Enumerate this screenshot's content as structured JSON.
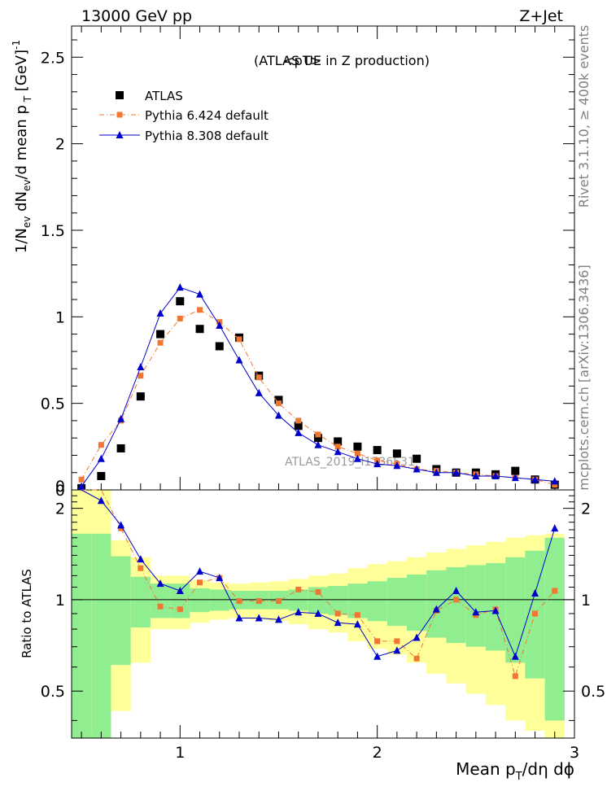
{
  "header": {
    "left": "13000 GeV pp",
    "right": "Z+Jet"
  },
  "side_labels": {
    "right_top": "Rivet 3.1.10, ≥ 400k events",
    "right_bottom": "mcplots.cern.ch [arXiv:1306.3436]"
  },
  "watermark": "ATLAS_2019_I1736531",
  "chart_data": [
    {
      "type": "scatter",
      "panel": "main",
      "title": "<pT>",
      "subtitle": "(ATLAS UE in Z production)",
      "ylabel": "1/N_ev dN_ev/d mean p_T [GeV]^-1",
      "xlim": [
        0.45,
        3.0
      ],
      "ylim": [
        0,
        2.68
      ],
      "y_ticks": [
        {
          "v": 0,
          "label": "0"
        },
        {
          "v": 0.5,
          "label": "0.5"
        },
        {
          "v": 1,
          "label": "1"
        },
        {
          "v": 1.5,
          "label": "1.5"
        },
        {
          "v": 2,
          "label": "2"
        },
        {
          "v": 2.5,
          "label": "2.5"
        }
      ],
      "x": [
        0.5,
        0.6,
        0.7,
        0.8,
        0.9,
        1.0,
        1.1,
        1.2,
        1.3,
        1.4,
        1.5,
        1.6,
        1.7,
        1.8,
        1.9,
        2.0,
        2.1,
        2.2,
        2.3,
        2.4,
        2.5,
        2.6,
        2.7,
        2.8,
        2.9
      ],
      "series": [
        {
          "name": "ATLAS",
          "color": "#000000",
          "marker": "square",
          "values": [
            0.01,
            0.08,
            0.24,
            0.54,
            0.9,
            1.09,
            0.93,
            0.83,
            0.88,
            0.66,
            0.52,
            0.37,
            0.3,
            0.28,
            0.25,
            0.23,
            0.21,
            0.18,
            0.12,
            0.1,
            0.1,
            0.09,
            0.11,
            0.06,
            0.03
          ]
        },
        {
          "name": "Pythia 6.424 default",
          "color": "#ee7733",
          "marker": "square-small",
          "line": "dashdot",
          "values": [
            0.06,
            0.26,
            0.4,
            0.66,
            0.85,
            0.99,
            1.04,
            0.97,
            0.87,
            0.65,
            0.5,
            0.4,
            0.32,
            0.25,
            0.21,
            0.17,
            0.15,
            0.12,
            0.11,
            0.1,
            0.09,
            0.08,
            0.07,
            0.06,
            0.03
          ]
        },
        {
          "name": "Pythia 8.308 default",
          "color": "#0000cc",
          "marker": "triangle",
          "line": "solid",
          "values": [
            0.02,
            0.18,
            0.41,
            0.71,
            1.02,
            1.17,
            1.13,
            0.95,
            0.75,
            0.56,
            0.43,
            0.33,
            0.26,
            0.22,
            0.18,
            0.15,
            0.14,
            0.12,
            0.1,
            0.1,
            0.08,
            0.08,
            0.07,
            0.06,
            0.05
          ]
        }
      ],
      "legend_position": "top-left",
      "grid": false
    },
    {
      "type": "line",
      "panel": "ratio",
      "ylabel": "Ratio to ATLAS",
      "xlabel": "Mean p_T/dη dϕ",
      "xlim": [
        0.45,
        3.0
      ],
      "ylim": [
        0.35,
        2.3
      ],
      "x_ticks": [
        {
          "v": 1,
          "label": "1"
        },
        {
          "v": 2,
          "label": "2"
        },
        {
          "v": 3,
          "label": "3"
        }
      ],
      "y_ticks": [
        {
          "v": 0.5,
          "label": "0.5"
        },
        {
          "v": 1,
          "label": "1"
        },
        {
          "v": 2,
          "label": "2"
        }
      ],
      "reference_line": 1,
      "x": [
        0.5,
        0.6,
        0.7,
        0.8,
        0.9,
        1.0,
        1.1,
        1.2,
        1.3,
        1.4,
        1.5,
        1.6,
        1.7,
        1.8,
        1.9,
        2.0,
        2.1,
        2.2,
        2.3,
        2.4,
        2.5,
        2.6,
        2.7,
        2.8,
        2.9
      ],
      "bands": {
        "inner_color": "#90ee90",
        "outer_color": "#ffff99",
        "inner_low": [
          0.35,
          0.35,
          0.61,
          0.81,
          0.87,
          0.87,
          0.91,
          0.92,
          0.93,
          0.93,
          0.93,
          0.92,
          0.9,
          0.89,
          0.87,
          0.85,
          0.82,
          0.79,
          0.75,
          0.72,
          0.7,
          0.68,
          0.62,
          0.55,
          0.4
        ],
        "inner_high": [
          1.65,
          1.65,
          1.39,
          1.19,
          1.13,
          1.13,
          1.09,
          1.08,
          1.07,
          1.07,
          1.07,
          1.08,
          1.1,
          1.11,
          1.13,
          1.15,
          1.18,
          1.21,
          1.25,
          1.28,
          1.3,
          1.32,
          1.38,
          1.45,
          1.6
        ],
        "outer_low": [
          0.35,
          0.38,
          0.43,
          0.62,
          0.8,
          0.8,
          0.84,
          0.86,
          0.87,
          0.86,
          0.85,
          0.83,
          0.8,
          0.78,
          0.73,
          0.69,
          0.66,
          0.62,
          0.57,
          0.53,
          0.49,
          0.45,
          0.4,
          0.37,
          0.35
        ],
        "outer_high": [
          2.3,
          2.3,
          1.57,
          1.38,
          1.2,
          1.2,
          1.16,
          1.14,
          1.13,
          1.14,
          1.15,
          1.17,
          1.2,
          1.22,
          1.27,
          1.31,
          1.34,
          1.38,
          1.43,
          1.47,
          1.51,
          1.55,
          1.6,
          1.63,
          1.65
        ]
      },
      "series": [
        {
          "name": "Pythia 6.424 default",
          "color": "#ee7733",
          "marker": "square-small",
          "line": "dashdot",
          "values": [
            2.3,
            2.3,
            1.72,
            1.27,
            0.95,
            0.93,
            1.14,
            1.18,
            0.99,
            0.99,
            0.99,
            1.08,
            1.06,
            0.9,
            0.89,
            0.73,
            0.73,
            0.64,
            0.92,
            1.0,
            0.89,
            0.93,
            0.56,
            0.9,
            1.07
          ]
        },
        {
          "name": "Pythia 8.308 default",
          "color": "#0000cc",
          "marker": "triangle",
          "line": "solid",
          "values": [
            2.3,
            2.12,
            1.76,
            1.36,
            1.13,
            1.07,
            1.24,
            1.18,
            0.87,
            0.87,
            0.86,
            0.91,
            0.9,
            0.84,
            0.83,
            0.65,
            0.68,
            0.75,
            0.93,
            1.07,
            0.91,
            0.92,
            0.65,
            1.05,
            1.72
          ]
        }
      ],
      "grid": false
    }
  ]
}
